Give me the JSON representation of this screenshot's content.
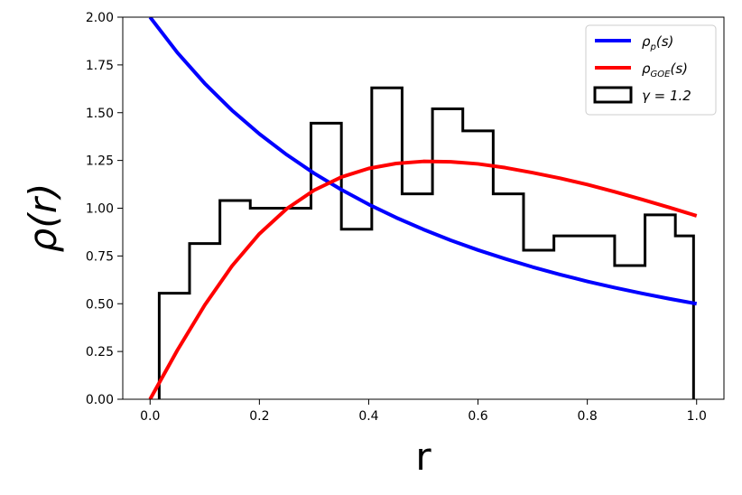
{
  "chart_data": {
    "type": "line",
    "xlabel": "r",
    "ylabel": "ρ(r)",
    "xlim": [
      -0.05,
      1.05
    ],
    "ylim": [
      0.0,
      2.0
    ],
    "x_ticks": [
      "0.0",
      "0.2",
      "0.4",
      "0.6",
      "0.8",
      "1.0"
    ],
    "y_ticks": [
      "0.00",
      "0.25",
      "0.50",
      "0.75",
      "1.00",
      "1.25",
      "1.50",
      "1.75",
      "2.00"
    ],
    "grid": false,
    "legend_position": "top-right",
    "series": [
      {
        "name": "ρp(s)",
        "color": "#0000ff",
        "x": [
          0.0,
          0.05,
          0.1,
          0.15,
          0.2,
          0.25,
          0.3,
          0.35,
          0.4,
          0.45,
          0.5,
          0.55,
          0.6,
          0.65,
          0.7,
          0.75,
          0.8,
          0.85,
          0.9,
          0.95,
          1.0
        ],
        "y": [
          2.0,
          1.814,
          1.653,
          1.512,
          1.389,
          1.28,
          1.183,
          1.097,
          1.02,
          0.951,
          0.889,
          0.832,
          0.781,
          0.735,
          0.692,
          0.653,
          0.617,
          0.584,
          0.554,
          0.526,
          0.5
        ]
      },
      {
        "name": "ρGOE(s)",
        "color": "#ff0000",
        "x": [
          0.0,
          0.05,
          0.1,
          0.15,
          0.2,
          0.25,
          0.3,
          0.35,
          0.4,
          0.45,
          0.5,
          0.55,
          0.6,
          0.65,
          0.7,
          0.75,
          0.8,
          0.85,
          0.9,
          0.95,
          1.0
        ],
        "y": [
          0.0,
          0.257,
          0.493,
          0.698,
          0.866,
          0.997,
          1.094,
          1.163,
          1.208,
          1.234,
          1.245,
          1.243,
          1.232,
          1.212,
          1.186,
          1.157,
          1.124,
          1.086,
          1.046,
          1.004,
          0.96
        ]
      }
    ],
    "histogram": {
      "name": "γ = 1.2",
      "color": "#000000",
      "bin_edges": [
        0.0167,
        0.0722,
        0.1278,
        0.1833,
        0.2389,
        0.2944,
        0.35,
        0.4056,
        0.4611,
        0.5167,
        0.5722,
        0.6278,
        0.6833,
        0.7389,
        0.7944,
        0.85,
        0.9056,
        0.9611,
        0.9944
      ],
      "values": [
        0.555,
        0.815,
        1.04,
        1.0,
        1.0,
        1.445,
        0.89,
        1.63,
        1.075,
        1.52,
        1.405,
        1.075,
        0.78,
        0.855,
        0.855,
        0.7,
        0.965,
        0.855
      ]
    },
    "legend": [
      {
        "label_main": "ρ",
        "label_sub": "p",
        "label_tail": "(s)",
        "color": "#0000ff",
        "kind": "line"
      },
      {
        "label_main": "ρ",
        "label_sub": "GOE",
        "label_tail": "(s)",
        "color": "#ff0000",
        "kind": "line"
      },
      {
        "label_main": "γ = 1.2",
        "label_sub": "",
        "label_tail": "",
        "color": "#000000",
        "kind": "box"
      }
    ]
  }
}
